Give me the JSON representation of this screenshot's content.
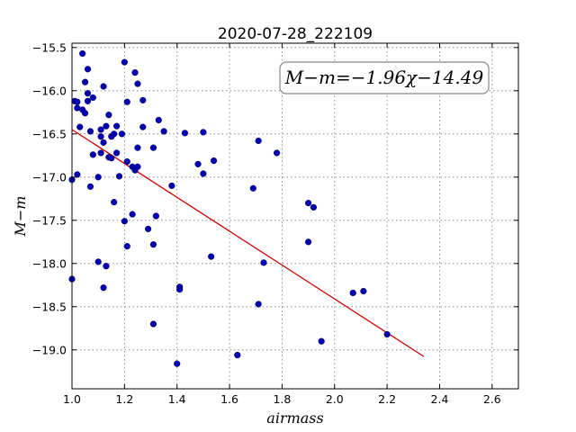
{
  "chart_data": {
    "type": "scatter",
    "title": "2020-07-28_222109",
    "xlabel": "airmass",
    "ylabel": "M−m",
    "xlim": [
      1.0,
      2.7
    ],
    "ylim": [
      -19.45,
      -15.45
    ],
    "y_inverted": true,
    "grid": true,
    "xticks": [
      1.0,
      1.2,
      1.4,
      1.6,
      1.8,
      2.0,
      2.2,
      2.4,
      2.6
    ],
    "xtick_labels": [
      "1.0",
      "1.2",
      "1.4",
      "1.6",
      "1.8",
      "2.0",
      "2.2",
      "2.4",
      "2.6"
    ],
    "yticks": [
      -15.5,
      -16.0,
      -16.5,
      -17.0,
      -17.5,
      -18.0,
      -18.5,
      -19.0
    ],
    "ytick_labels": [
      "−15.5",
      "−16.0",
      "−16.5",
      "−17.0",
      "−17.5",
      "−18.0",
      "−18.5",
      "−19.0"
    ],
    "point_color": "#0000b3",
    "fit_color": "#cc0000",
    "annotation": "M−m=−1.96χ−14.49",
    "fit": {
      "slope": -1.96,
      "intercept": -14.49,
      "x_range": [
        1.0,
        2.34
      ]
    },
    "points": [
      [
        1.0,
        -17.03
      ],
      [
        1.0,
        -18.18
      ],
      [
        1.01,
        -16.12
      ],
      [
        1.02,
        -16.13
      ],
      [
        1.02,
        -16.97
      ],
      [
        1.02,
        -16.2
      ],
      [
        1.03,
        -16.42
      ],
      [
        1.04,
        -15.57
      ],
      [
        1.04,
        -16.22
      ],
      [
        1.05,
        -16.26
      ],
      [
        1.05,
        -15.9
      ],
      [
        1.06,
        -15.75
      ],
      [
        1.06,
        -16.03
      ],
      [
        1.06,
        -16.12
      ],
      [
        1.07,
        -16.47
      ],
      [
        1.07,
        -17.11
      ],
      [
        1.08,
        -16.74
      ],
      [
        1.08,
        -16.08
      ],
      [
        1.1,
        -17.0
      ],
      [
        1.1,
        -17.98
      ],
      [
        1.11,
        -16.45
      ],
      [
        1.11,
        -16.72
      ],
      [
        1.11,
        -16.53
      ],
      [
        1.12,
        -15.95
      ],
      [
        1.12,
        -16.6
      ],
      [
        1.12,
        -18.28
      ],
      [
        1.13,
        -16.41
      ],
      [
        1.13,
        -18.03
      ],
      [
        1.14,
        -16.28
      ],
      [
        1.14,
        -16.77
      ],
      [
        1.15,
        -16.53
      ],
      [
        1.15,
        -16.78
      ],
      [
        1.16,
        -17.29
      ],
      [
        1.16,
        -16.5
      ],
      [
        1.17,
        -16.72
      ],
      [
        1.17,
        -16.41
      ],
      [
        1.18,
        -16.99
      ],
      [
        1.19,
        -16.5
      ],
      [
        1.2,
        -15.67
      ],
      [
        1.2,
        -17.51
      ],
      [
        1.21,
        -17.8
      ],
      [
        1.21,
        -16.13
      ],
      [
        1.21,
        -16.82
      ],
      [
        1.23,
        -16.88
      ],
      [
        1.23,
        -17.43
      ],
      [
        1.24,
        -16.92
      ],
      [
        1.24,
        -15.79
      ],
      [
        1.25,
        -16.88
      ],
      [
        1.25,
        -16.66
      ],
      [
        1.25,
        -15.92
      ],
      [
        1.27,
        -16.11
      ],
      [
        1.27,
        -16.42
      ],
      [
        1.29,
        -17.6
      ],
      [
        1.31,
        -16.66
      ],
      [
        1.31,
        -17.78
      ],
      [
        1.31,
        -18.7
      ],
      [
        1.32,
        -17.45
      ],
      [
        1.33,
        -16.34
      ],
      [
        1.35,
        -16.47
      ],
      [
        1.38,
        -17.1
      ],
      [
        1.4,
        -19.16
      ],
      [
        1.41,
        -18.27
      ],
      [
        1.41,
        -18.3
      ],
      [
        1.43,
        -16.49
      ],
      [
        1.48,
        -16.85
      ],
      [
        1.5,
        -16.48
      ],
      [
        1.5,
        -16.96
      ],
      [
        1.53,
        -17.92
      ],
      [
        1.54,
        -16.81
      ],
      [
        1.63,
        -19.06
      ],
      [
        1.69,
        -17.13
      ],
      [
        1.71,
        -16.58
      ],
      [
        1.71,
        -18.47
      ],
      [
        1.73,
        -17.99
      ],
      [
        1.78,
        -16.72
      ],
      [
        1.9,
        -17.3
      ],
      [
        1.9,
        -17.75
      ],
      [
        1.92,
        -17.35
      ],
      [
        1.95,
        -18.9
      ],
      [
        2.07,
        -18.34
      ],
      [
        2.11,
        -18.32
      ],
      [
        2.2,
        -18.82
      ]
    ]
  }
}
